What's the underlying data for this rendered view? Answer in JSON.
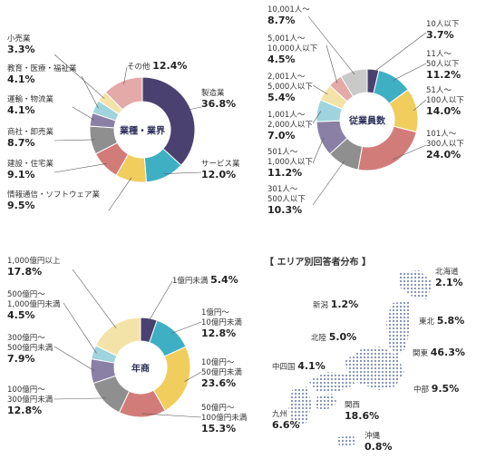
{
  "chart_data": [
    {
      "type": "donut",
      "title": "業種・業界",
      "categories": [
        "製造業",
        "サービス業",
        "情報通信・ソフトウェア業",
        "建設・住宅業",
        "商社・卸売業",
        "運輸・物流業",
        "教育・医療・福祉業",
        "小売業",
        "その他"
      ],
      "values": [
        36.8,
        12.0,
        9.5,
        9.1,
        8.7,
        4.1,
        4.1,
        3.3,
        12.4
      ],
      "value_labels": [
        "36.8%",
        "12.0%",
        "9.5%",
        "9.1%",
        "8.7%",
        "4.1%",
        "4.1%",
        "3.3%",
        "12.4%"
      ],
      "colors": [
        "#4b4170",
        "#3fb0c4",
        "#f0cd5c",
        "#d27c7a",
        "#8f8f8f",
        "#8a80a6",
        "#9fd4de",
        "#f4e3a8",
        "#e3aaa7"
      ]
    },
    {
      "type": "donut",
      "title": "従業員数",
      "categories": [
        "10人以下",
        "11人～\n50人以下",
        "51人～\n100人以下",
        "101人～\n300人以下",
        "301人～\n500人以下",
        "501人～\n1,000人以下",
        "1,001人～\n2,000人以下",
        "2,001人～\n5,000人以下",
        "5,001人～\n10,000人以下",
        "10,001人～"
      ],
      "values": [
        3.7,
        11.2,
        14.0,
        24.0,
        10.3,
        11.2,
        7.0,
        5.4,
        4.5,
        8.7
      ],
      "value_labels": [
        "3.7%",
        "11.2%",
        "14.0%",
        "24.0%",
        "10.3%",
        "11.2%",
        "7.0%",
        "5.4%",
        "4.5%",
        "8.7%"
      ],
      "colors": [
        "#4b4170",
        "#3fb0c4",
        "#f0cd5c",
        "#d27c7a",
        "#8f8f8f",
        "#8a80a6",
        "#9fd4de",
        "#f4e3a8",
        "#e3aaa7",
        "#c9c9c9"
      ]
    },
    {
      "type": "donut",
      "title": "年商",
      "categories": [
        "1億円未満",
        "1億円～\n10億円未満",
        "10億円～\n50億円未満",
        "50億円～\n100億円未満",
        "100億円～\n300億円未満",
        "300億円～\n500億円未満",
        "500億円～\n1,000億円未満",
        "1,000億円以上"
      ],
      "values": [
        5.4,
        12.8,
        23.6,
        15.3,
        12.8,
        7.9,
        4.5,
        17.8
      ],
      "value_labels": [
        "5.4%",
        "12.8%",
        "23.6%",
        "15.3%",
        "12.8%",
        "7.9%",
        "4.5%",
        "17.8%"
      ],
      "colors": [
        "#4b4170",
        "#3fb0c4",
        "#f0cd5c",
        "#d27c7a",
        "#8f8f8f",
        "#8a80a6",
        "#9fd4de",
        "#f4e3a8"
      ]
    },
    {
      "type": "map",
      "title": "【 エリア別回答者分布 】",
      "categories": [
        "北海道",
        "新潟",
        "東北",
        "北陸",
        "関東",
        "中四国",
        "中部",
        "九州",
        "関西",
        "沖縄"
      ],
      "values": [
        2.1,
        1.2,
        5.8,
        5.0,
        46.3,
        4.1,
        9.5,
        6.6,
        18.6,
        0.8
      ],
      "value_labels": [
        "2.1%",
        "1.2%",
        "5.8%",
        "5.0%",
        "46.3%",
        "4.1%",
        "9.5%",
        "6.6%",
        "18.6%",
        "0.8%"
      ],
      "color": "#7c8db3"
    }
  ]
}
